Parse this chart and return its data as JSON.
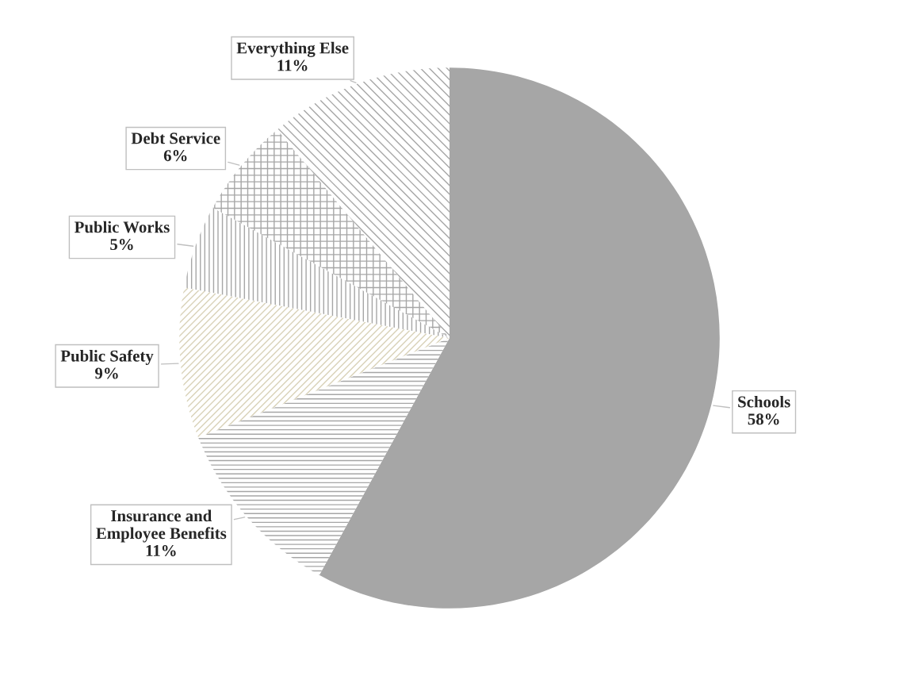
{
  "chart_data": {
    "type": "pie",
    "categories": [
      "Schools",
      "Insurance and\nEmployee Benefits",
      "Public Safety",
      "Public Works",
      "Debt Service",
      "Everything Else"
    ],
    "values": [
      58,
      11,
      9,
      5,
      6,
      11
    ],
    "value_labels": [
      "58%",
      "11%",
      "9%",
      "5%",
      "6%",
      "11%"
    ],
    "colors": [
      "#a6a6a6",
      "#a6a6a6",
      "#d9d2b8",
      "#a6a6a6",
      "#a6a6a6",
      "#a6a6a6"
    ],
    "legend": false
  }
}
